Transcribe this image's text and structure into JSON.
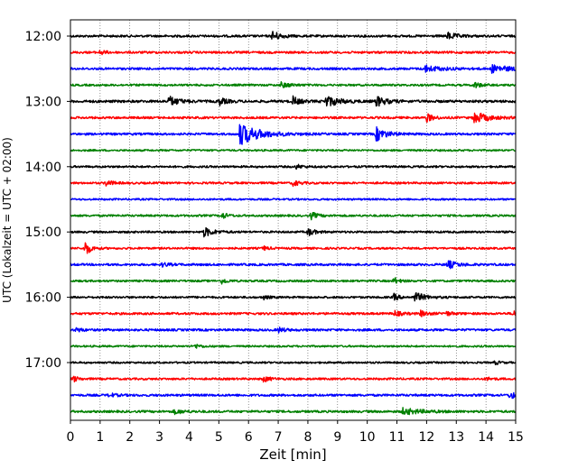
{
  "chart_data": {
    "type": "line",
    "title": "",
    "xlabel": "Zeit  [min]",
    "ylabel": "UTC (Lokalzeit = UTC + 02:00)",
    "xlim": [
      0,
      15
    ],
    "x_ticks": [
      0,
      1,
      2,
      3,
      4,
      5,
      6,
      7,
      8,
      9,
      10,
      11,
      12,
      13,
      14,
      15
    ],
    "y_ticks": [
      "12:00",
      "13:00",
      "14:00",
      "15:00",
      "16:00",
      "17:00"
    ],
    "grid": "vertical dotted lines at each minute",
    "legend": "none",
    "trace_interval_minutes": 15,
    "colors": [
      "#000000",
      "#ff0000",
      "#0000ff",
      "#008000"
    ],
    "traces": [
      {
        "start": "12:00",
        "color": "#000000",
        "noise": 0.22,
        "events": [
          {
            "t": 6.8,
            "amp": 1.0,
            "dur": 0.25
          },
          {
            "t": 12.7,
            "amp": 0.7,
            "dur": 0.3
          }
        ]
      },
      {
        "start": "12:15",
        "color": "#ff0000",
        "noise": 0.22,
        "events": [
          {
            "t": 1.0,
            "amp": 0.5,
            "dur": 0.15
          }
        ]
      },
      {
        "start": "12:30",
        "color": "#0000ff",
        "noise": 0.22,
        "events": [
          {
            "t": 11.9,
            "amp": 0.7,
            "dur": 0.5
          },
          {
            "t": 14.2,
            "amp": 0.7,
            "dur": 0.6
          }
        ]
      },
      {
        "start": "12:45",
        "color": "#008000",
        "noise": 0.2,
        "events": [
          {
            "t": 7.1,
            "amp": 0.5,
            "dur": 0.3
          },
          {
            "t": 13.6,
            "amp": 0.6,
            "dur": 0.2
          }
        ]
      },
      {
        "start": "13:00",
        "color": "#000000",
        "noise": 0.25,
        "events": [
          {
            "t": 3.3,
            "amp": 1.0,
            "dur": 0.3
          },
          {
            "t": 5.0,
            "amp": 0.8,
            "dur": 0.2
          },
          {
            "t": 7.5,
            "amp": 0.9,
            "dur": 0.2
          },
          {
            "t": 8.6,
            "amp": 1.1,
            "dur": 0.4
          },
          {
            "t": 10.3,
            "amp": 1.0,
            "dur": 0.3
          }
        ]
      },
      {
        "start": "13:15",
        "color": "#ff0000",
        "noise": 0.22,
        "events": [
          {
            "t": 12.0,
            "amp": 0.8,
            "dur": 0.2
          },
          {
            "t": 13.6,
            "amp": 1.2,
            "dur": 0.4
          }
        ]
      },
      {
        "start": "13:30",
        "color": "#0000ff",
        "noise": 0.22,
        "events": [
          {
            "t": 5.7,
            "amp": 2.2,
            "dur": 0.6
          },
          {
            "t": 10.3,
            "amp": 1.4,
            "dur": 0.3
          }
        ]
      },
      {
        "start": "13:45",
        "color": "#008000",
        "noise": 0.18,
        "events": []
      },
      {
        "start": "14:00",
        "color": "#000000",
        "noise": 0.2,
        "events": [
          {
            "t": 7.6,
            "amp": 0.4,
            "dur": 0.2
          }
        ]
      },
      {
        "start": "14:15",
        "color": "#ff0000",
        "noise": 0.2,
        "events": [
          {
            "t": 1.2,
            "amp": 0.6,
            "dur": 0.2
          },
          {
            "t": 7.5,
            "amp": 0.6,
            "dur": 0.2
          }
        ]
      },
      {
        "start": "14:30",
        "color": "#0000ff",
        "noise": 0.18,
        "events": []
      },
      {
        "start": "14:45",
        "color": "#008000",
        "noise": 0.2,
        "events": [
          {
            "t": 5.1,
            "amp": 0.7,
            "dur": 0.15
          },
          {
            "t": 8.1,
            "amp": 0.7,
            "dur": 0.2
          }
        ]
      },
      {
        "start": "15:00",
        "color": "#000000",
        "noise": 0.2,
        "events": [
          {
            "t": 4.5,
            "amp": 0.9,
            "dur": 0.3
          },
          {
            "t": 8.0,
            "amp": 0.8,
            "dur": 0.2
          }
        ]
      },
      {
        "start": "15:15",
        "color": "#ff0000",
        "noise": 0.2,
        "events": [
          {
            "t": 0.5,
            "amp": 1.6,
            "dur": 0.15
          },
          {
            "t": 6.5,
            "amp": 0.4,
            "dur": 0.15
          }
        ]
      },
      {
        "start": "15:30",
        "color": "#0000ff",
        "noise": 0.22,
        "events": [
          {
            "t": 12.7,
            "amp": 0.8,
            "dur": 0.3
          },
          {
            "t": 3.1,
            "amp": 0.4,
            "dur": 0.2
          }
        ]
      },
      {
        "start": "15:45",
        "color": "#008000",
        "noise": 0.2,
        "events": [
          {
            "t": 5.1,
            "amp": 0.6,
            "dur": 0.15
          },
          {
            "t": 10.9,
            "amp": 0.7,
            "dur": 0.15
          }
        ]
      },
      {
        "start": "16:00",
        "color": "#000000",
        "noise": 0.2,
        "events": [
          {
            "t": 10.9,
            "amp": 0.7,
            "dur": 0.15
          },
          {
            "t": 11.6,
            "amp": 1.0,
            "dur": 0.3
          },
          {
            "t": 6.5,
            "amp": 0.4,
            "dur": 0.15
          }
        ]
      },
      {
        "start": "16:15",
        "color": "#ff0000",
        "noise": 0.22,
        "events": [
          {
            "t": 10.9,
            "amp": 0.6,
            "dur": 0.2
          },
          {
            "t": 11.8,
            "amp": 0.6,
            "dur": 0.2
          },
          {
            "t": 12.6,
            "amp": 0.5,
            "dur": 0.2
          },
          {
            "t": 14.9,
            "amp": 0.6,
            "dur": 0.15
          }
        ]
      },
      {
        "start": "16:30",
        "color": "#0000ff",
        "noise": 0.22,
        "events": [
          {
            "t": 0.2,
            "amp": 0.5,
            "dur": 0.15
          },
          {
            "t": 7.0,
            "amp": 0.5,
            "dur": 0.2
          }
        ]
      },
      {
        "start": "16:45",
        "color": "#008000",
        "noise": 0.18,
        "events": [
          {
            "t": 4.2,
            "amp": 0.4,
            "dur": 0.2
          }
        ]
      },
      {
        "start": "17:00",
        "color": "#000000",
        "noise": 0.18,
        "events": [
          {
            "t": 14.3,
            "amp": 0.4,
            "dur": 0.15
          }
        ]
      },
      {
        "start": "17:15",
        "color": "#ff0000",
        "noise": 0.2,
        "events": [
          {
            "t": 0.1,
            "amp": 0.6,
            "dur": 0.15
          },
          {
            "t": 6.5,
            "amp": 0.6,
            "dur": 0.2
          },
          {
            "t": 14.0,
            "amp": 0.3,
            "dur": 0.2
          }
        ]
      },
      {
        "start": "17:30",
        "color": "#0000ff",
        "noise": 0.22,
        "events": [
          {
            "t": 1.3,
            "amp": 0.4,
            "dur": 0.2
          },
          {
            "t": 14.8,
            "amp": 0.8,
            "dur": 0.2
          }
        ]
      },
      {
        "start": "17:45",
        "color": "#008000",
        "noise": 0.22,
        "events": [
          {
            "t": 11.2,
            "amp": 0.6,
            "dur": 0.6
          },
          {
            "t": 3.5,
            "amp": 0.4,
            "dur": 0.3
          }
        ]
      }
    ]
  }
}
